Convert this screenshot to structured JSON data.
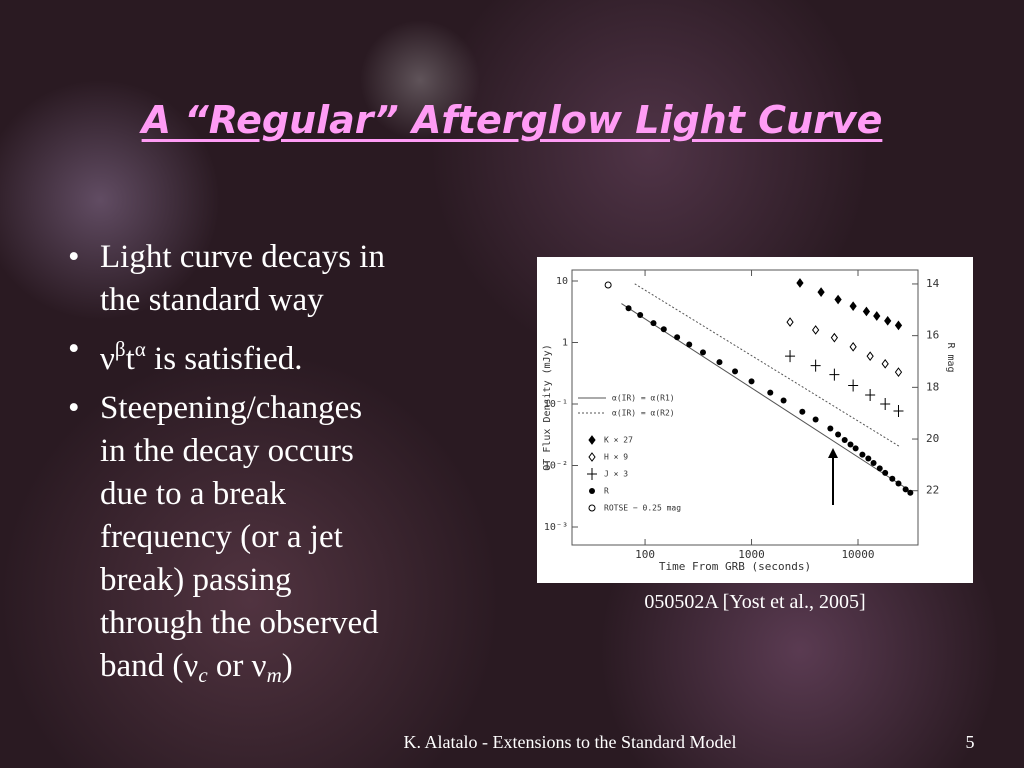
{
  "slide": {
    "title": "A “Regular” Afterglow Light Curve",
    "bullets": [
      [
        [
          {
            "text": "Light curve decays in"
          }
        ],
        [
          {
            "text": "the standard way"
          }
        ]
      ],
      [
        [
          {
            "text": " ν"
          },
          {
            "text": "β",
            "style": "sup"
          },
          {
            "text": "t"
          },
          {
            "text": "α",
            "style": "sup"
          },
          {
            "text": " is satisfied."
          }
        ]
      ],
      [
        [
          {
            "text": "Steepening/changes"
          }
        ],
        [
          {
            "text": "in the decay occurs"
          }
        ],
        [
          {
            "text": "due to a break"
          }
        ],
        [
          {
            "text": "frequency (or a jet"
          }
        ],
        [
          {
            "text": "break) passing"
          }
        ],
        [
          {
            "text": "through the observed"
          }
        ],
        [
          {
            "text": "band (ν"
          },
          {
            "text": "c",
            "style": "sub"
          },
          {
            "text": " or ν"
          },
          {
            "text": "m",
            "style": "sub"
          },
          {
            "text": ")"
          }
        ]
      ]
    ],
    "caption": "050502A [Yost et al., 2005]",
    "footer": "K. Alatalo - Extensions to the Standard Model",
    "page_number": "5"
  },
  "chart_data": {
    "type": "scatter",
    "xlabel": "Time From GRB (seconds)",
    "ylabel": "OT Flux Density (mJy)",
    "y2label": "R mag",
    "xscale": "log",
    "yscale": "log",
    "xlim": [
      20.6,
      36600
    ],
    "ylim": [
      0.00051,
      15.1
    ],
    "y2lim": [
      24.1,
      13.46
    ],
    "xticks": [
      100,
      1000,
      10000
    ],
    "yticks": [
      10,
      1,
      {
        "value": 0.1,
        "label": "10⁻¹"
      },
      {
        "value": 0.01,
        "label": "10⁻²"
      },
      {
        "value": 0.001,
        "label": "10⁻³"
      }
    ],
    "y2ticks": [
      14,
      16,
      18,
      20,
      22
    ],
    "legend": "left",
    "series": [
      {
        "name": "α(IR) = α(R1)",
        "marker": "solid-line",
        "color": "#555555",
        "x": [
          60,
          30000
        ],
        "values": [
          4.3,
          0.004
        ]
      },
      {
        "name": "α(IR) = α(R2)",
        "marker": "dotted-line",
        "color": "#555555",
        "x": [
          80,
          25000
        ],
        "values": [
          9,
          0.02
        ]
      },
      {
        "name": "K × 27",
        "marker": "diamond-filled",
        "color": "#000000",
        "x": [
          2850,
          4500,
          6500,
          9000,
          12000,
          15000,
          19000,
          24000
        ],
        "values": [
          9.3,
          6.6,
          5.0,
          3.9,
          3.2,
          2.7,
          2.25,
          1.9
        ]
      },
      {
        "name": "H × 9",
        "marker": "diamond-open",
        "color": "#000000",
        "x": [
          2300,
          4000,
          6000,
          9000,
          13000,
          18000,
          24000
        ],
        "values": [
          2.15,
          1.6,
          1.2,
          0.85,
          0.6,
          0.45,
          0.33
        ]
      },
      {
        "name": "J × 3",
        "marker": "cross",
        "color": "#000000",
        "x": [
          2300,
          4000,
          6000,
          9000,
          13000,
          18000,
          24000
        ],
        "values": [
          0.6,
          0.42,
          0.3,
          0.2,
          0.14,
          0.1,
          0.077
        ]
      },
      {
        "name": "R",
        "marker": "circle-filled",
        "color": "#000000",
        "x": [
          70,
          90,
          120,
          150,
          200,
          260,
          350,
          500,
          700,
          1000,
          1500,
          2000,
          3000,
          4000,
          5500,
          6500,
          7500,
          8500,
          9500,
          11000,
          12500,
          14000,
          16000,
          18000,
          21000,
          24000,
          28000,
          31000
        ],
        "values": [
          3.6,
          2.8,
          2.07,
          1.64,
          1.22,
          0.93,
          0.69,
          0.48,
          0.34,
          0.233,
          0.153,
          0.114,
          0.075,
          0.056,
          0.04,
          0.032,
          0.026,
          0.022,
          0.019,
          0.015,
          0.013,
          0.011,
          0.009,
          0.0076,
          0.0061,
          0.0051,
          0.0041,
          0.0036
        ]
      },
      {
        "name": "ROTSE − 0.25 mag",
        "marker": "circle-open",
        "color": "#000000",
        "x": [
          45
        ],
        "values": [
          8.6
        ]
      }
    ]
  }
}
